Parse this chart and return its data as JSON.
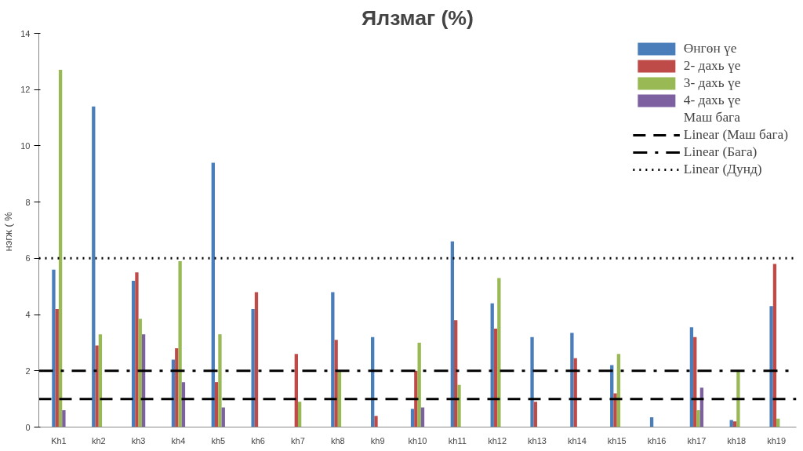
{
  "chart_data": {
    "type": "bar",
    "title": "Ялзмаг (%)",
    "ylabel": "нэгж  ( %",
    "categories": [
      "Kh1",
      "kh2",
      "kh3",
      "kh4",
      "kh5",
      "kh6",
      "kh7",
      "kh8",
      "kh9",
      "kh10",
      "kh11",
      "kh12",
      "kh13",
      "kh14",
      "kh15",
      "kh16",
      "kh17",
      "kh18",
      "kh19"
    ],
    "series": [
      {
        "name": "Өнгөн үе",
        "color": "#4a7ebb",
        "values": [
          5.6,
          11.4,
          5.2,
          2.4,
          9.4,
          4.2,
          null,
          4.8,
          3.2,
          0.65,
          6.6,
          4.4,
          3.2,
          3.35,
          2.2,
          0.35,
          3.55,
          0.25,
          4.3
        ]
      },
      {
        "name": "2- дахь үе",
        "color": "#be4b48",
        "values": [
          4.2,
          2.9,
          5.5,
          2.8,
          1.6,
          4.8,
          2.6,
          3.1,
          0.4,
          2.0,
          3.8,
          3.5,
          0.9,
          2.45,
          1.2,
          null,
          3.2,
          0.2,
          5.8
        ]
      },
      {
        "name": "3- дахь үе",
        "color": "#98b954",
        "values": [
          12.7,
          3.3,
          3.85,
          5.9,
          3.3,
          null,
          0.9,
          2.0,
          null,
          3.0,
          1.5,
          5.3,
          null,
          null,
          2.6,
          null,
          0.6,
          2.0,
          0.3
        ]
      },
      {
        "name": "4- дахь үе",
        "color": "#7d60a0",
        "values": [
          0.6,
          null,
          3.3,
          1.6,
          0.7,
          null,
          null,
          null,
          null,
          0.7,
          null,
          null,
          null,
          null,
          null,
          null,
          1.4,
          null,
          null
        ]
      },
      {
        "name": "Маш бага",
        "values": [
          null,
          null,
          null,
          null,
          null,
          null,
          null,
          null,
          null,
          null,
          null,
          null,
          null,
          null,
          null,
          null,
          null,
          null,
          null
        ]
      }
    ],
    "ref_lines": [
      {
        "axis": "y",
        "value": 1,
        "label": "Linear (Маш бага)",
        "line_style": "dashed",
        "color": "#000000"
      },
      {
        "axis": "y",
        "value": 2,
        "label": "Linear (Бага)",
        "line_style": "dashdot",
        "color": "#000000"
      },
      {
        "axis": "y",
        "value": 6,
        "label": "Linear (Дунд)",
        "line_style": "dotted",
        "color": "#000000"
      }
    ],
    "ylim": [
      0,
      14
    ],
    "yticks": [
      0,
      2,
      4,
      6,
      8,
      10,
      12,
      14
    ],
    "grid": false,
    "legend": "top right"
  }
}
